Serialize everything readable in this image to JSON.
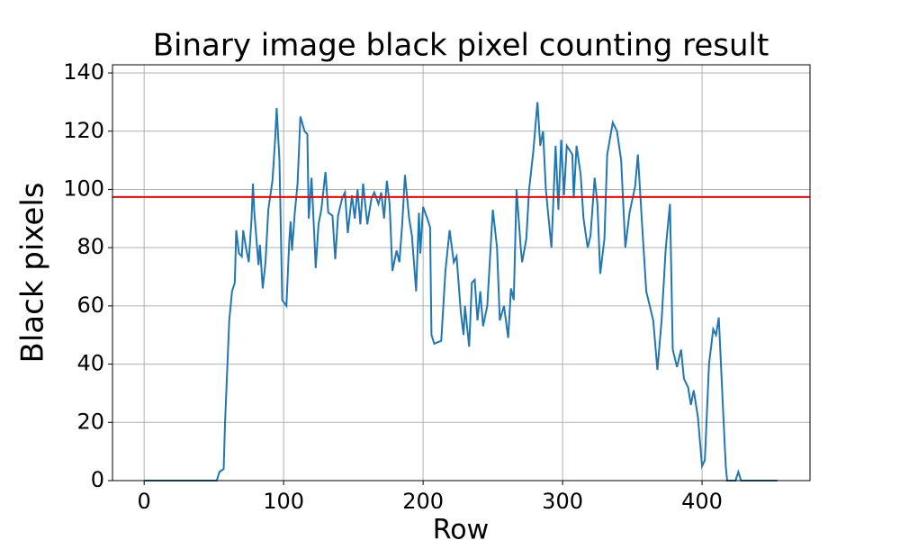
{
  "chart_data": {
    "type": "line",
    "title": "Binary image black pixel counting result",
    "x_label": "Row",
    "y_label": "Black pixels",
    "x": [
      0,
      52,
      54,
      57,
      58,
      61,
      63,
      65,
      66,
      68,
      70,
      71,
      73,
      75,
      77,
      78,
      79,
      82,
      83,
      85,
      87,
      89,
      92,
      94,
      95,
      97,
      99,
      102,
      104,
      105,
      106,
      108,
      110,
      112,
      115,
      117,
      118,
      120,
      122,
      123,
      125,
      127,
      130,
      132,
      135,
      137,
      139,
      142,
      144,
      146,
      149,
      151,
      153,
      155,
      157,
      160,
      163,
      165,
      168,
      170,
      172,
      174,
      176,
      178,
      181,
      183,
      185,
      187,
      190,
      192,
      195,
      197,
      198,
      200,
      203,
      205,
      206,
      208,
      213,
      216,
      219,
      222,
      224,
      227,
      229,
      230,
      233,
      235,
      237,
      239,
      241,
      243,
      246,
      249,
      250,
      253,
      255,
      258,
      261,
      263,
      265,
      267,
      270,
      271,
      274,
      276,
      279,
      282,
      284,
      286,
      288,
      292,
      295,
      297,
      299,
      301,
      303,
      307,
      308,
      310,
      313,
      315,
      318,
      320,
      323,
      325,
      327,
      330,
      332,
      336,
      339,
      342,
      345,
      348,
      352,
      354,
      357,
      360,
      365,
      368,
      371,
      374,
      377,
      379,
      382,
      385,
      387,
      390,
      392,
      394,
      397,
      400,
      402,
      405,
      408,
      410,
      412,
      415,
      417,
      418,
      424,
      426,
      428,
      454
    ],
    "values": [
      0,
      0,
      3,
      4,
      20,
      55,
      65,
      68,
      86,
      78,
      77,
      86,
      80,
      75,
      90,
      102,
      92,
      74,
      81,
      66,
      75,
      93,
      103,
      118,
      128,
      110,
      62,
      60,
      82,
      89,
      79,
      92,
      102,
      125,
      120,
      119,
      90,
      104,
      84,
      73,
      88,
      93,
      106,
      92,
      91,
      76,
      91,
      97,
      99,
      85,
      98,
      90,
      100,
      88,
      102,
      88,
      97,
      99,
      95,
      99,
      90,
      103,
      95,
      72,
      79,
      75,
      88,
      105,
      90,
      84,
      65,
      92,
      78,
      94,
      90,
      87,
      50,
      47,
      48,
      72,
      86,
      75,
      77,
      58,
      50,
      60,
      46,
      68,
      69,
      55,
      65,
      53,
      60,
      85,
      93,
      80,
      55,
      60,
      49,
      66,
      62,
      100,
      80,
      75,
      83,
      100,
      113,
      130,
      115,
      120,
      100,
      80,
      115,
      93,
      117,
      98,
      115,
      112,
      97,
      115,
      105,
      90,
      80,
      84,
      104,
      95,
      71,
      83,
      112,
      123,
      120,
      110,
      80,
      92,
      101,
      112,
      88,
      65,
      55,
      38,
      55,
      80,
      95,
      45,
      39,
      45,
      35,
      32,
      26,
      31,
      22,
      5,
      7,
      40,
      52,
      50,
      56,
      25,
      5,
      0,
      0,
      3,
      0,
      0
    ],
    "color": "#1f77b4",
    "hline": {
      "value": 97.4,
      "color": "#ff0000"
    },
    "xlim": [
      -22.7,
      477.4
    ],
    "xticks": [
      0,
      100,
      200,
      300,
      400
    ],
    "ylim": [
      0,
      142.8
    ],
    "yticks": [
      0,
      20,
      40,
      60,
      80,
      100,
      120,
      140
    ],
    "grid": true
  }
}
